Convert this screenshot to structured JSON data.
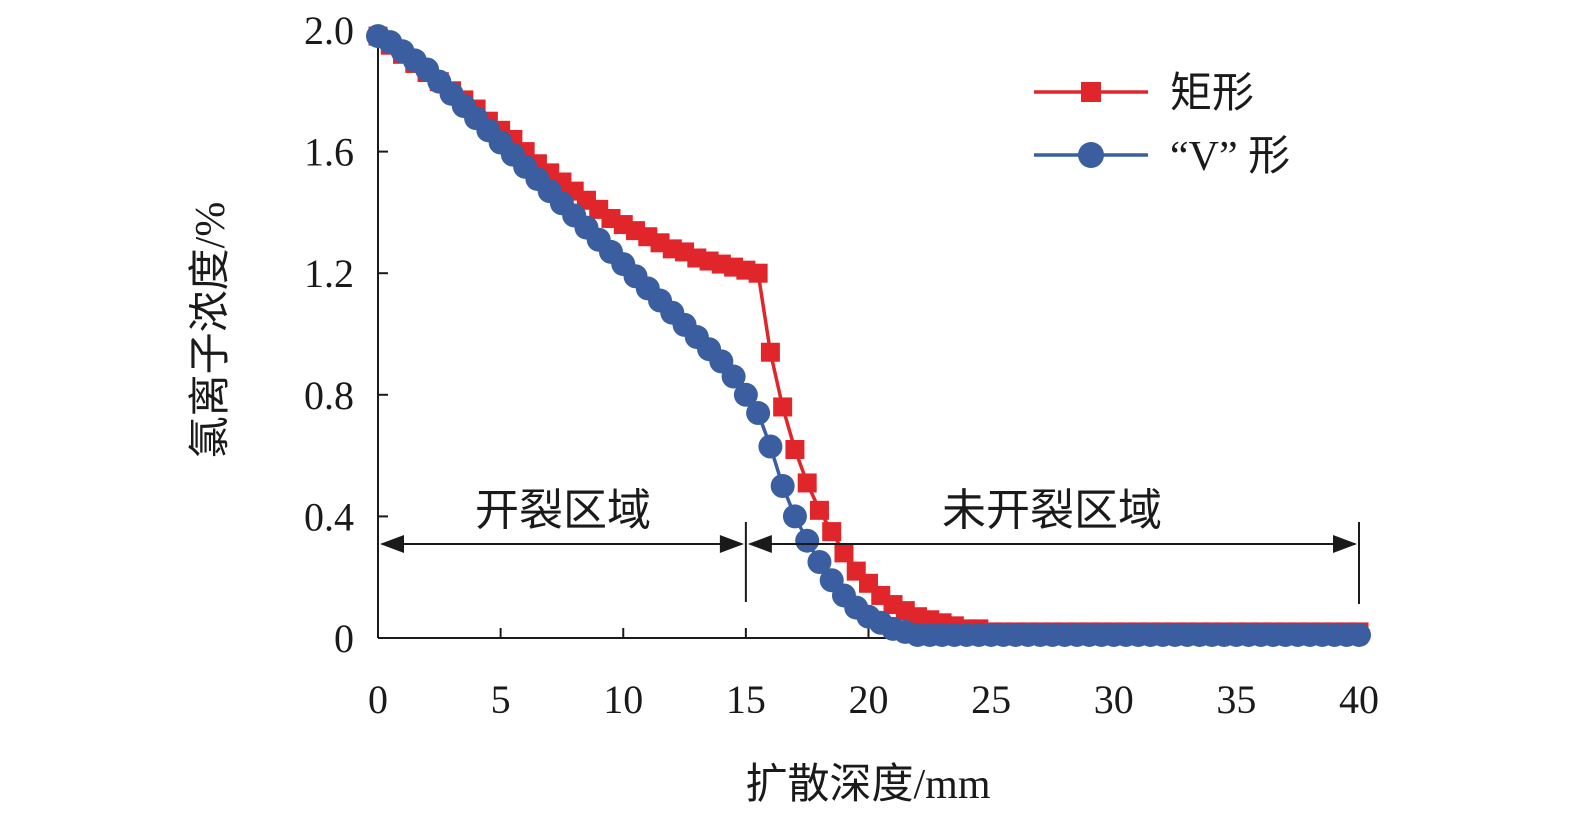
{
  "chart_data": {
    "type": "line",
    "xlabel": "扩散深度/mm",
    "ylabel": "氯离子浓度/%",
    "xlim": [
      0,
      40
    ],
    "ylim": [
      0,
      2.0
    ],
    "xticks": [
      "0",
      "5",
      "10",
      "15",
      "20",
      "25",
      "30",
      "35",
      "40"
    ],
    "yticks": [
      "0",
      "0.4",
      "0.8",
      "1.2",
      "1.6",
      "2.0"
    ],
    "legend_position": "top-right",
    "grid": false,
    "annotations": {
      "cracked_region": "开裂区域",
      "uncracked_region": "未开裂区域",
      "boundary_x": 15
    },
    "series": [
      {
        "name": "矩形",
        "color": "#e0262b",
        "marker": "square",
        "x": [
          0,
          0.5,
          1,
          1.5,
          2,
          2.5,
          3,
          3.5,
          4,
          4.5,
          5,
          5.5,
          6,
          6.5,
          7,
          7.5,
          8,
          8.5,
          9,
          9.5,
          10,
          10.5,
          11,
          11.5,
          12,
          12.5,
          13,
          13.5,
          14,
          14.5,
          15,
          15.5,
          16,
          16.5,
          17,
          17.5,
          18,
          18.5,
          19,
          19.5,
          20,
          20.5,
          21,
          21.5,
          22,
          22.5,
          23,
          23.5,
          24,
          24.5,
          25,
          25.5,
          26,
          26.5,
          27,
          27.5,
          28,
          28.5,
          29,
          29.5,
          30,
          30.5,
          31,
          31.5,
          32,
          32.5,
          33,
          33.5,
          34,
          34.5,
          35,
          35.5,
          36,
          36.5,
          37,
          37.5,
          38,
          38.5,
          39,
          39.5,
          40
        ],
        "y": [
          1.98,
          1.95,
          1.92,
          1.89,
          1.86,
          1.83,
          1.8,
          1.77,
          1.74,
          1.7,
          1.67,
          1.64,
          1.6,
          1.56,
          1.53,
          1.5,
          1.47,
          1.44,
          1.41,
          1.38,
          1.36,
          1.34,
          1.32,
          1.3,
          1.28,
          1.27,
          1.25,
          1.24,
          1.23,
          1.22,
          1.21,
          1.2,
          0.94,
          0.76,
          0.62,
          0.51,
          0.42,
          0.35,
          0.28,
          0.22,
          0.18,
          0.14,
          0.11,
          0.09,
          0.07,
          0.06,
          0.05,
          0.04,
          0.03,
          0.03,
          0.02,
          0.02,
          0.02,
          0.02,
          0.02,
          0.02,
          0.02,
          0.02,
          0.02,
          0.02,
          0.02,
          0.02,
          0.02,
          0.02,
          0.02,
          0.02,
          0.02,
          0.02,
          0.02,
          0.02,
          0.02,
          0.02,
          0.02,
          0.02,
          0.02,
          0.02,
          0.02,
          0.02,
          0.02,
          0.02,
          0.02
        ]
      },
      {
        "name": "“V” 形",
        "color": "#3a5ea0",
        "marker": "circle",
        "x": [
          0,
          0.5,
          1,
          1.5,
          2,
          2.5,
          3,
          3.5,
          4,
          4.5,
          5,
          5.5,
          6,
          6.5,
          7,
          7.5,
          8,
          8.5,
          9,
          9.5,
          10,
          10.5,
          11,
          11.5,
          12,
          12.5,
          13,
          13.5,
          14,
          14.5,
          15,
          15.5,
          16,
          16.5,
          17,
          17.5,
          18,
          18.5,
          19,
          19.5,
          20,
          20.5,
          21,
          21.5,
          22,
          22.5,
          23,
          23.5,
          24,
          24.5,
          25,
          25.5,
          26,
          26.5,
          27,
          27.5,
          28,
          28.5,
          29,
          29.5,
          30,
          30.5,
          31,
          31.5,
          32,
          32.5,
          33,
          33.5,
          34,
          34.5,
          35,
          35.5,
          36,
          36.5,
          37,
          37.5,
          38,
          38.5,
          39,
          39.5,
          40
        ],
        "y": [
          1.98,
          1.96,
          1.93,
          1.9,
          1.87,
          1.83,
          1.79,
          1.75,
          1.71,
          1.67,
          1.63,
          1.59,
          1.55,
          1.51,
          1.47,
          1.43,
          1.39,
          1.35,
          1.31,
          1.27,
          1.23,
          1.19,
          1.15,
          1.11,
          1.07,
          1.03,
          0.99,
          0.95,
          0.91,
          0.86,
          0.8,
          0.74,
          0.63,
          0.5,
          0.4,
          0.32,
          0.25,
          0.19,
          0.14,
          0.1,
          0.07,
          0.05,
          0.03,
          0.02,
          0.01,
          0.01,
          0.01,
          0.01,
          0.01,
          0.01,
          0.01,
          0.01,
          0.01,
          0.01,
          0.01,
          0.01,
          0.01,
          0.01,
          0.01,
          0.01,
          0.01,
          0.01,
          0.01,
          0.01,
          0.01,
          0.01,
          0.01,
          0.01,
          0.01,
          0.01,
          0.01,
          0.01,
          0.01,
          0.01,
          0.01,
          0.01,
          0.01,
          0.01,
          0.01,
          0.01,
          0.01
        ]
      }
    ]
  }
}
